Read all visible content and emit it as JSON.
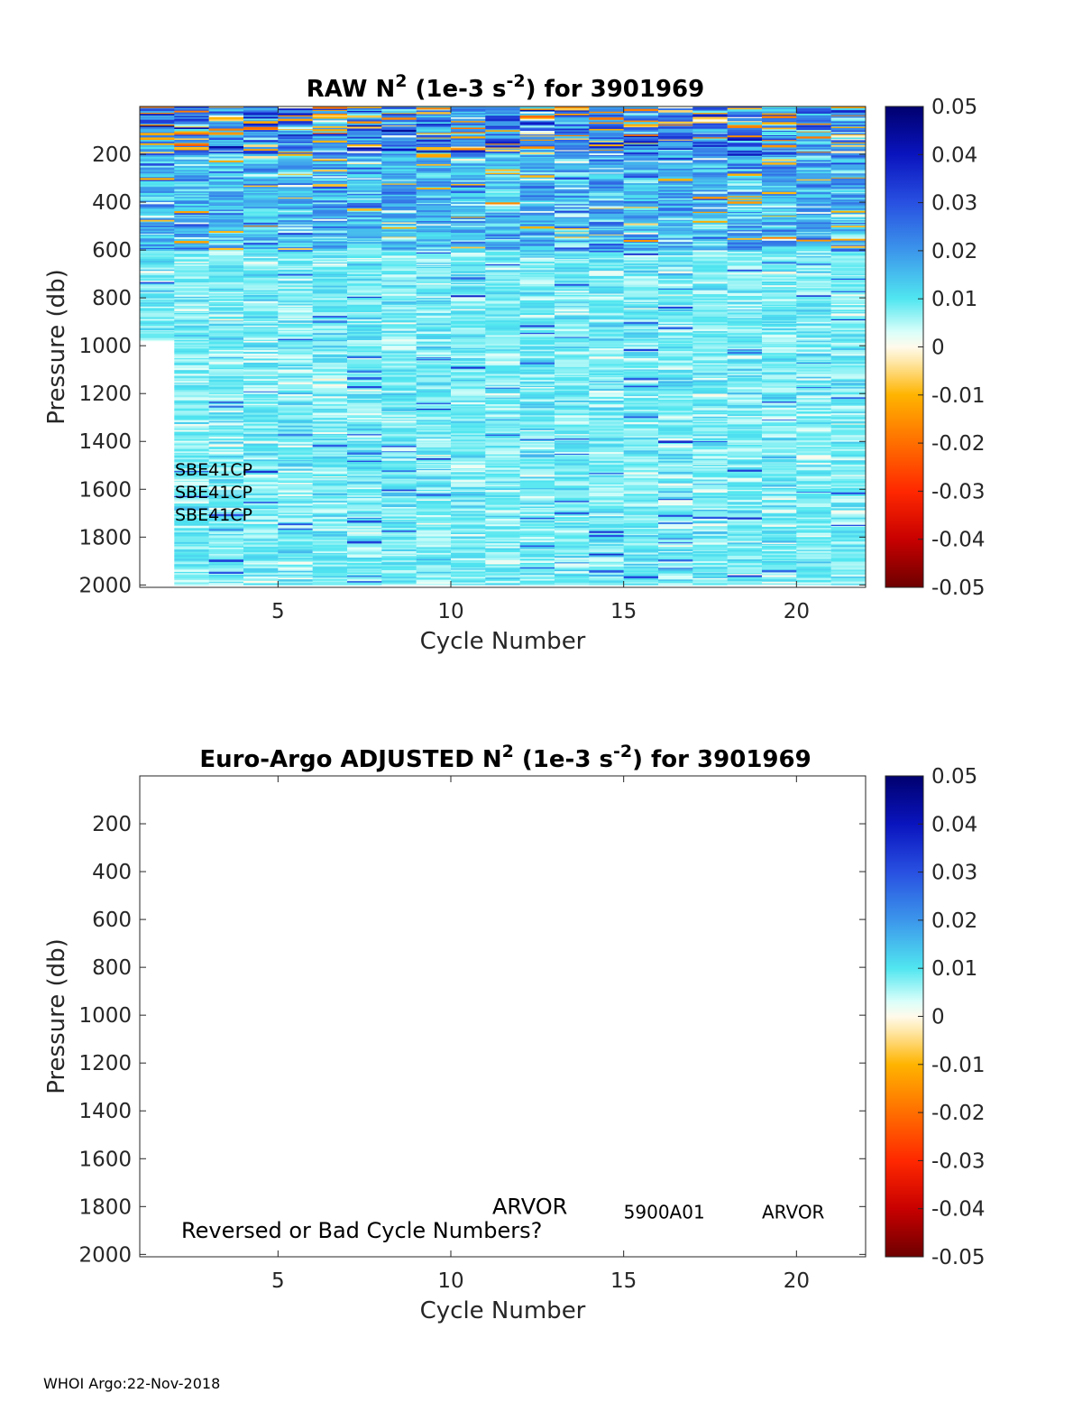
{
  "footer": "WHOI Argo:22-Nov-2018",
  "colorbar": {
    "ticks": [
      "0.05",
      "0.04",
      "0.03",
      "0.02",
      "0.01",
      "0",
      "-0.01",
      "-0.02",
      "-0.03",
      "-0.04",
      "-0.05"
    ],
    "range": [
      -0.05,
      0.05
    ],
    "colormap": "diverging: dark red (-0.05) - orange - cream (0) - cyan - blue - dark navy (0.05)"
  },
  "chart_data": [
    {
      "type": "heatmap",
      "title_parts": [
        "RAW N",
        "2",
        " (1e-3 s",
        "-2",
        ") for 3901969"
      ],
      "xlabel": "Cycle Number",
      "ylabel": "Pressure (db)",
      "xticks": [
        "5",
        "10",
        "15",
        "20"
      ],
      "yticks": [
        "200",
        "400",
        "600",
        "800",
        "1000",
        "1200",
        "1400",
        "1600",
        "1800",
        "2000"
      ],
      "xlim": [
        1,
        22
      ],
      "ylim": [
        2010,
        0
      ],
      "clim": [
        -0.05,
        0.05
      ],
      "cycles": [
        1,
        21
      ],
      "cycle_1_max_pressure": 980,
      "annotations": [
        "SBE41CP",
        "SBE41CP",
        "SBE41CP"
      ],
      "description_values": "N2 mostly 0.005-0.015 below 600 db; 0.02-0.05 near surface (0-200 db) with sporadic negative values"
    },
    {
      "type": "heatmap",
      "title_parts": [
        "Euro-Argo  ADJUSTED N",
        "2",
        " (1e-3 s",
        "-2",
        ") for 3901969"
      ],
      "xlabel": "Cycle Number",
      "ylabel": "Pressure (db)",
      "xticks": [
        "5",
        "10",
        "15",
        "20"
      ],
      "yticks": [
        "200",
        "400",
        "600",
        "800",
        "1000",
        "1200",
        "1400",
        "1600",
        "1800",
        "2000"
      ],
      "xlim": [
        1,
        22
      ],
      "ylim": [
        2010,
        0
      ],
      "clim": [
        -0.05,
        0.05
      ],
      "values": [],
      "annotations": [
        {
          "text": "ARVOR",
          "x": 11.2,
          "y": 1800
        },
        {
          "text": "Reversed or Bad Cycle Numbers?",
          "x": 2.2,
          "y": 1900
        },
        {
          "text": "5900A01",
          "x": 15,
          "y": 1820
        },
        {
          "text": "ARVOR",
          "x": 19,
          "y": 1820
        }
      ]
    }
  ]
}
